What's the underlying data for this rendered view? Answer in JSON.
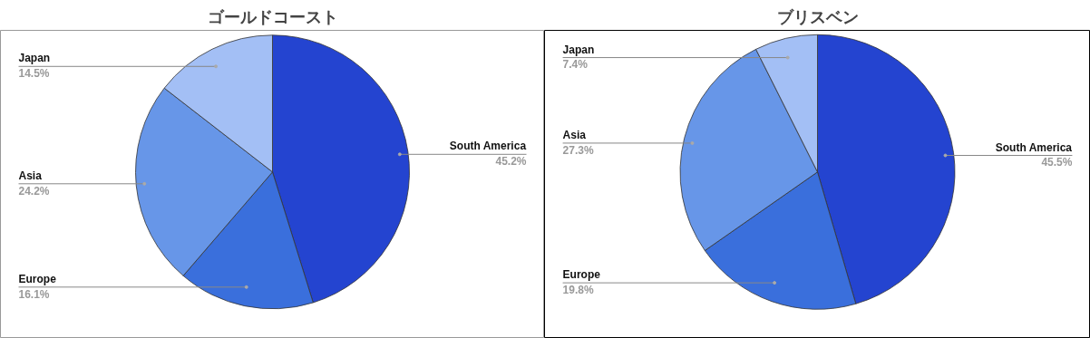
{
  "chart_data": [
    {
      "type": "pie",
      "title": "ゴールドコースト",
      "categories": [
        "South America",
        "Europe",
        "Asia",
        "Japan"
      ],
      "values": [
        45.2,
        16.1,
        24.2,
        14.5
      ],
      "value_labels": [
        "45.2%",
        "16.1%",
        "24.2%",
        "14.5%"
      ],
      "colors": [
        "#2444d0",
        "#3a6fdc",
        "#6796e8",
        "#a3bff5"
      ],
      "legend": false
    },
    {
      "type": "pie",
      "title": "ブリスベン",
      "categories": [
        "South America",
        "Europe",
        "Asia",
        "Japan"
      ],
      "values": [
        45.5,
        19.8,
        27.3,
        7.4
      ],
      "value_labels": [
        "45.5%",
        "19.8%",
        "27.3%",
        "7.4%"
      ],
      "colors": [
        "#2444d0",
        "#3a6fdc",
        "#6796e8",
        "#a3bff5"
      ],
      "legend": false
    }
  ]
}
